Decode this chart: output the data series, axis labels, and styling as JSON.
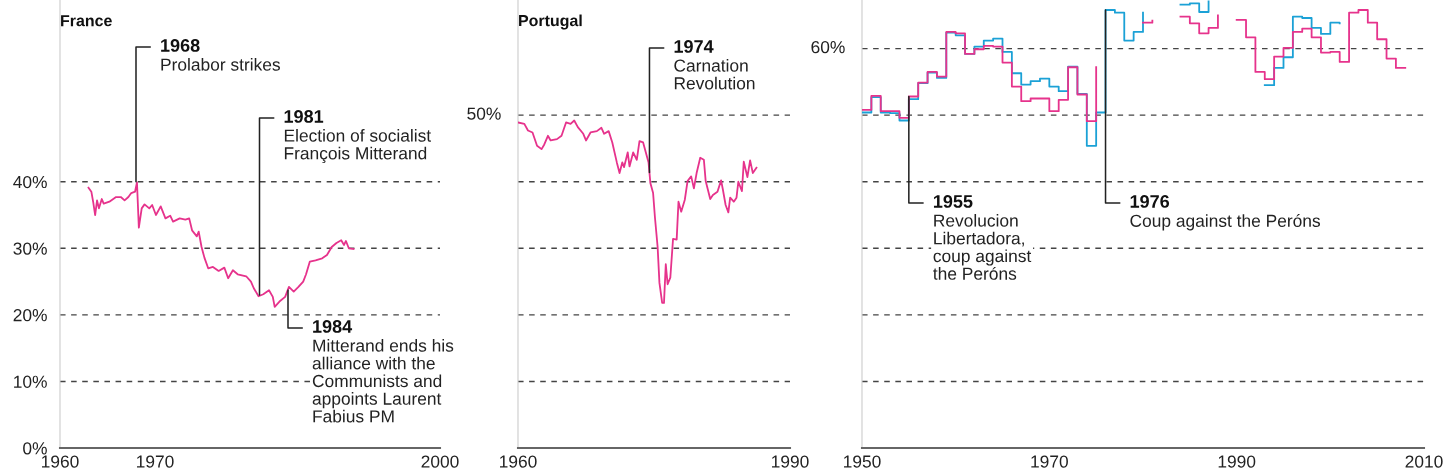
{
  "chart_data": [
    {
      "type": "line",
      "title": "France",
      "xlim": [
        1960,
        2000
      ],
      "ylim": [
        0,
        67.3
      ],
      "grid": "y",
      "xticks": [
        {
          "value": 1960,
          "label": "1960"
        },
        {
          "value": 1970,
          "label": "1970"
        },
        {
          "value": 2000,
          "label": "2000"
        }
      ],
      "yticks": [
        {
          "value": 0,
          "label": "0%"
        },
        {
          "value": 10,
          "label": "10%"
        },
        {
          "value": 20,
          "label": "20%"
        },
        {
          "value": 30,
          "label": "30%"
        },
        {
          "value": 40,
          "label": "40%"
        }
      ],
      "series": [
        {
          "color": "#e6338c",
          "x": [
            1963.0,
            1963.3,
            1963.5,
            1963.7,
            1963.9,
            1964.1,
            1964.4,
            1964.6,
            1965.2,
            1965.9,
            1966.4,
            1966.8,
            1967.2,
            1967.5,
            1967.9,
            1968.1,
            1968.3,
            1968.6,
            1968.9,
            1969.4,
            1969.7,
            1970.1,
            1970.6,
            1971.1,
            1971.6,
            1971.9,
            1972.6,
            1973.2,
            1973.6,
            1973.9,
            1974.4,
            1974.6,
            1974.9,
            1975.2,
            1975.6,
            1976.1,
            1976.7,
            1977.3,
            1977.7,
            1978.2,
            1978.7,
            1979.6,
            1980.1,
            1980.4,
            1980.9,
            1981.4,
            1982.0,
            1982.4,
            1982.6,
            1983.1,
            1983.7,
            1984.1,
            1984.6,
            1985.1,
            1985.6,
            1985.9,
            1986.3,
            1986.9,
            1987.6,
            1988.1,
            1988.6,
            1989.1,
            1989.6,
            1989.9,
            1990.1,
            1990.4,
            1990.9
          ],
          "values": [
            39.1,
            38.5,
            36.9,
            35.0,
            37.2,
            36.0,
            37.4,
            36.7,
            37.0,
            37.7,
            37.7,
            37.2,
            37.7,
            38.3,
            38.5,
            39.9,
            33.1,
            36.0,
            36.6,
            36.0,
            36.5,
            35.0,
            36.3,
            34.5,
            34.9,
            34.0,
            34.5,
            34.3,
            34.5,
            32.7,
            31.8,
            32.5,
            30.2,
            28.6,
            27.0,
            27.2,
            26.6,
            27.1,
            25.5,
            26.7,
            26.1,
            25.8,
            25.0,
            24.0,
            22.8,
            23.1,
            23.7,
            22.7,
            21.2,
            22.0,
            22.7,
            24.2,
            23.5,
            24.2,
            25.0,
            26.1,
            28.0,
            28.2,
            28.5,
            29.0,
            30.2,
            30.8,
            31.2,
            30.5,
            31.1,
            30.0,
            29.9
          ]
        }
      ],
      "annotations": [
        {
          "text": "1968\nProlabor strikes",
          "x": 1968,
          "y": 40
        },
        {
          "text": "1981\nElection of socialist\nFrançois Mitterand",
          "x": 1981,
          "y": 23
        },
        {
          "text": "1984\nMitterand ends his\nalliance with the\nCommunists and\nappoints Laurent\nFabius PM",
          "x": 1984,
          "y": 23.7
        }
      ]
    },
    {
      "type": "line",
      "title": "Portugal",
      "xlim": [
        1960,
        1990
      ],
      "ylim": [
        0,
        67.3
      ],
      "grid": "y",
      "xticks": [
        1960,
        1990
      ],
      "yticks": [
        0,
        10,
        20,
        30,
        40
      ],
      "tick_labels": "x",
      "ref_lines": [
        {
          "axis": "y",
          "value": 50,
          "label": "50%",
          "line_style": "dashed"
        }
      ],
      "series": [
        {
          "color": "#e6338c",
          "x": [
            1960.0,
            1960.7,
            1961.1,
            1961.6,
            1962.1,
            1962.6,
            1962.9,
            1963.3,
            1963.6,
            1964.3,
            1964.8,
            1965.3,
            1965.8,
            1966.2,
            1966.6,
            1967.2,
            1967.5,
            1968.0,
            1968.7,
            1969.2,
            1969.5,
            1970.0,
            1970.4,
            1970.9,
            1971.2,
            1971.5,
            1971.7,
            1972.1,
            1972.3,
            1972.7,
            1973.1,
            1973.4,
            1973.8,
            1974.1,
            1974.4,
            1974.6,
            1974.9,
            1975.1,
            1975.4,
            1975.6,
            1975.9,
            1976.1,
            1976.3,
            1976.5,
            1976.8,
            1977.1,
            1977.5,
            1977.7,
            1978.0,
            1978.4,
            1978.7,
            1979.1,
            1979.4,
            1979.7,
            1980.1,
            1980.5,
            1980.7,
            1981.0,
            1981.2,
            1981.5,
            1982.0,
            1982.4,
            1982.6,
            1982.9,
            1983.2,
            1983.4,
            1983.8,
            1984.1,
            1984.3,
            1984.7,
            1984.9,
            1985.3,
            1985.6,
            1985.9,
            1986.3
          ],
          "values": [
            48.9,
            48.7,
            47.7,
            47.4,
            45.4,
            44.9,
            45.6,
            46.9,
            46.2,
            46.4,
            46.9,
            48.9,
            48.7,
            49.2,
            48.2,
            47.2,
            46.2,
            47.4,
            47.6,
            48.1,
            47.2,
            47.6,
            45.9,
            42.9,
            41.3,
            42.9,
            42.2,
            44.4,
            42.3,
            44.4,
            43.3,
            46.1,
            45.9,
            44.4,
            42.9,
            39.8,
            38.3,
            34.7,
            30.2,
            24.8,
            21.8,
            21.8,
            27.6,
            24.6,
            25.6,
            31.4,
            31.3,
            37.0,
            35.5,
            37.3,
            40.1,
            40.8,
            39.0,
            41.3,
            43.6,
            43.3,
            40.1,
            38.5,
            37.4,
            38.0,
            38.5,
            40.2,
            38.8,
            36.5,
            35.4,
            37.6,
            37.0,
            37.6,
            40.0,
            38.6,
            43.0,
            40.7,
            43.2,
            41.3,
            42.1
          ]
        }
      ],
      "annotations": [
        {
          "text": "1974\nCarnation\nRevolution",
          "x": 1974.5,
          "y": 41.4
        }
      ]
    },
    {
      "type": "step",
      "xlim": [
        1950,
        2010
      ],
      "ylim": [
        0,
        67.3
      ],
      "grid": "y",
      "xticks": [
        1950,
        1970,
        1990,
        2010
      ],
      "yticks": [
        0,
        10,
        20,
        30,
        40,
        50
      ],
      "tick_labels": "x",
      "ref_lines": [
        {
          "axis": "y",
          "value": 60,
          "label": "60%",
          "line_style": "dashed"
        }
      ],
      "series": [
        {
          "color": "#1ba1d6",
          "x": [
            1950,
            1951,
            1952,
            1953,
            1954,
            1955,
            1956,
            1957,
            1958,
            1959,
            1960,
            1961,
            1962,
            1963,
            1964,
            1965,
            1966,
            1967,
            1968,
            1969,
            1970,
            1971,
            1972,
            1973,
            1974,
            1975,
            1976,
            1977,
            1978,
            1979,
            1980,
            1981,
            1982,
            1983,
            1984,
            1985,
            1986,
            1987,
            1988,
            1989,
            1990,
            1991,
            1992,
            1993,
            1994,
            1995,
            1996,
            1997,
            1998,
            1999,
            2000,
            2001
          ],
          "values": [
            50.4,
            52.7,
            50.4,
            50.3,
            49.2,
            52.4,
            54.8,
            56.4,
            55.6,
            62.4,
            62.0,
            59.2,
            60.3,
            61.2,
            61.5,
            59.5,
            56.3,
            54.6,
            55.1,
            55.5,
            54.3,
            53.6,
            57.3,
            53.2,
            45.4,
            50.4,
            65.8,
            65.4,
            61.2,
            62.5,
            65.4,
            null,
            null,
            null,
            66.6,
            66.8,
            65.5,
            67.1,
            null,
            null,
            null,
            null,
            null,
            54.5,
            57.1,
            58.7,
            64.8,
            64.6,
            63.1,
            62.2,
            63.9,
            63.8
          ]
        },
        {
          "color": "#e6338c",
          "x": [
            1950,
            1951,
            1952,
            1953,
            1954,
            1955,
            1956,
            1957,
            1958,
            1959,
            1960,
            1961,
            1962,
            1963,
            1964,
            1965,
            1966,
            1967,
            1968,
            1969,
            1970,
            1971,
            1972,
            1973,
            1974,
            1975,
            1976,
            1977,
            1978,
            1979,
            1980,
            1981,
            1982,
            1983,
            1984,
            1985,
            1986,
            1987,
            1988,
            1989,
            1990,
            1991,
            1992,
            1993,
            1994,
            1995,
            1996,
            1997,
            1998,
            1999,
            2000,
            2001,
            2002,
            2003,
            2004,
            2005,
            2006,
            2007,
            2008
          ],
          "values": [
            50.8,
            52.9,
            50.6,
            50.6,
            49.6,
            52.8,
            54.9,
            56.5,
            55.8,
            62.5,
            62.3,
            59.2,
            59.9,
            60.4,
            60.3,
            57.9,
            54.3,
            52.1,
            52.5,
            52.5,
            50.6,
            52.3,
            57.2,
            53.1,
            49.1,
            57.2,
            null,
            null,
            null,
            null,
            63.9,
            64.2,
            null,
            null,
            64.8,
            63.8,
            62.3,
            63.1,
            65.0,
            null,
            64.3,
            61.7,
            56.5,
            55.4,
            58.8,
            60.1,
            62.5,
            63.0,
            61.7,
            59.4,
            59.5,
            58.0,
            65.4,
            65.8,
            63.9,
            61.4,
            58.5,
            57.1,
            57.1
          ]
        }
      ],
      "annotations": [
        {
          "text": "1955\nRevolucion\nLibertadora,\ncoup against\nthe Peróns",
          "x": 1955,
          "y": 52.8
        },
        {
          "text": "1976\nCoup against the Peróns",
          "x": 1976,
          "y": 65.8
        }
      ]
    }
  ]
}
